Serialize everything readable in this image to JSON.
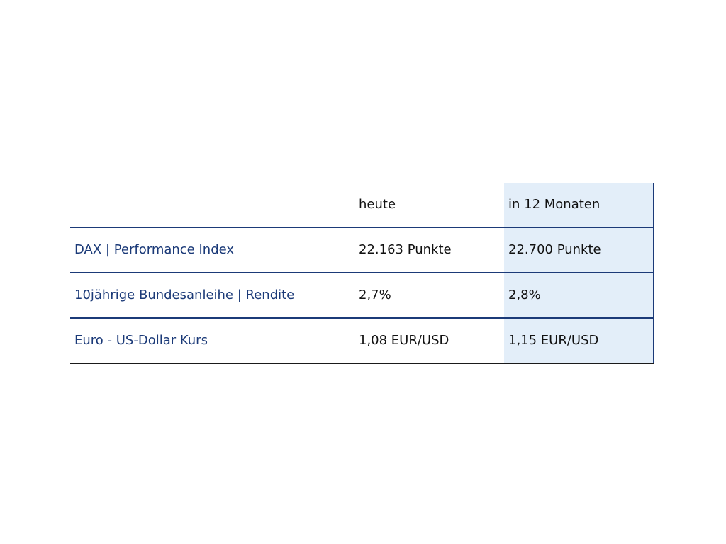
{
  "table": {
    "header": {
      "label": "",
      "today": "heute",
      "future": "in 12 Monaten"
    },
    "rows": [
      {
        "label": "DAX | Performance Index",
        "today": "22.163 Punkte",
        "future": "22.700 Punkte"
      },
      {
        "label": "10jährige Bundesanleihe | Rendite",
        "today": "2,7%",
        "future": "2,8%"
      },
      {
        "label": "Euro - US-Dollar Kurs",
        "today": "1,08 EUR/USD",
        "future": "1,15 EUR/USD"
      }
    ],
    "colors": {
      "label_text": "#1b3a78",
      "rule": "#1b3a78",
      "highlight_column": "#e3eef9",
      "bottom_rule": "#1a1a1a"
    }
  }
}
